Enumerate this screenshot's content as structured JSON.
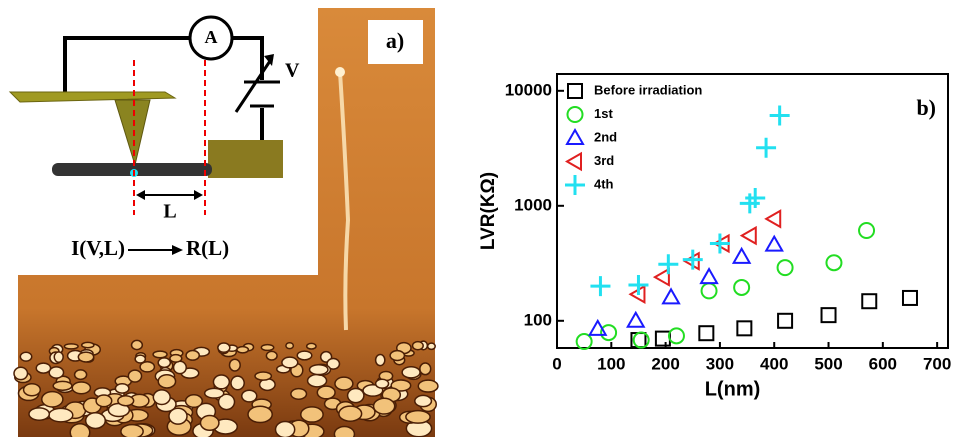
{
  "panel_a": {
    "label": "a)",
    "ammeter": "A",
    "voltage": "V",
    "length": "L",
    "equation_left": "I(V,L)",
    "equation_right": "R(L)"
  },
  "chart_data": {
    "type": "scatter",
    "panel_label": "b)",
    "x_label": "L(nm)",
    "y_label": "LVR(KΩ)",
    "xlim": [
      0,
      720
    ],
    "xticks": [
      0,
      100,
      200,
      300,
      400,
      500,
      600,
      700
    ],
    "ylim": [
      58,
      14000
    ],
    "yticks": [
      100,
      1000,
      10000
    ],
    "log_y": true,
    "legend": "upper left",
    "series": [
      {
        "name": "Before irradiation",
        "color": "#000000",
        "marker": "square",
        "x": [
          150,
          195,
          275,
          345,
          420,
          500,
          575,
          650
        ],
        "values": [
          68,
          70,
          78,
          86,
          100,
          112,
          148,
          158
        ]
      },
      {
        "name": "1st",
        "color": "#22dd22",
        "marker": "circle",
        "x": [
          50,
          95,
          155,
          220,
          280,
          340,
          420,
          510,
          570
        ],
        "values": [
          66,
          79,
          68,
          74,
          182,
          195,
          290,
          320,
          610
        ]
      },
      {
        "name": "2nd",
        "color": "#1a1aff",
        "marker": "triangle",
        "x": [
          75,
          145,
          210,
          280,
          340,
          400
        ],
        "values": [
          85,
          100,
          160,
          240,
          360,
          460
        ]
      },
      {
        "name": "3rd",
        "color": "#e02020",
        "marker": "left-triangle",
        "x": [
          150,
          195,
          250,
          305,
          355,
          400
        ],
        "values": [
          170,
          240,
          330,
          470,
          550,
          770
        ]
      },
      {
        "name": "4th",
        "color": "#22e0f0",
        "marker": "plus",
        "x": [
          80,
          150,
          205,
          250,
          300,
          355,
          365,
          385,
          410
        ],
        "values": [
          200,
          205,
          310,
          340,
          470,
          1050,
          1170,
          3200,
          6100
        ]
      }
    ]
  }
}
